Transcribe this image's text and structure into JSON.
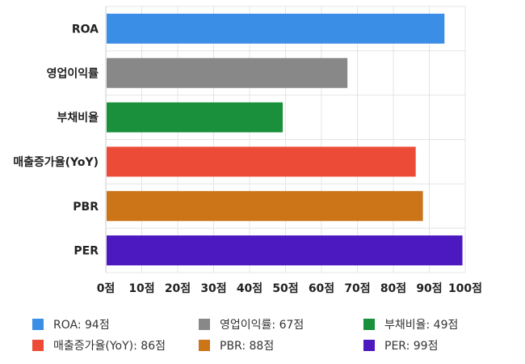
{
  "chart_data": {
    "type": "bar",
    "orientation": "horizontal",
    "categories": [
      "ROA",
      "영업이익률",
      "부채비율",
      "매출증가율(YoY)",
      "PBR",
      "PER"
    ],
    "values": [
      94,
      67,
      49,
      86,
      88,
      99
    ],
    "colors": [
      "#3a8ee6",
      "#888888",
      "#1a8f3c",
      "#ec4c37",
      "#cc7418",
      "#4c18c0"
    ],
    "unit": "점",
    "xlim": [
      0,
      100
    ],
    "xticks": [
      0,
      10,
      20,
      30,
      40,
      50,
      60,
      70,
      80,
      90,
      100
    ],
    "xtick_labels": [
      "0점",
      "10점",
      "20점",
      "30점",
      "40점",
      "50점",
      "60점",
      "70점",
      "80점",
      "90점",
      "100점"
    ],
    "grid": true,
    "legend_position": "bottom",
    "legend": [
      {
        "label": "ROA: 94점",
        "color": "#3a8ee6"
      },
      {
        "label": "영업이익률: 67점",
        "color": "#888888"
      },
      {
        "label": "부채비율: 49점",
        "color": "#1a8f3c"
      },
      {
        "label": "매출증가율(YoY): 86점",
        "color": "#ec4c37"
      },
      {
        "label": "PBR: 88점",
        "color": "#cc7418"
      },
      {
        "label": "PER: 99점",
        "color": "#4c18c0"
      }
    ]
  }
}
